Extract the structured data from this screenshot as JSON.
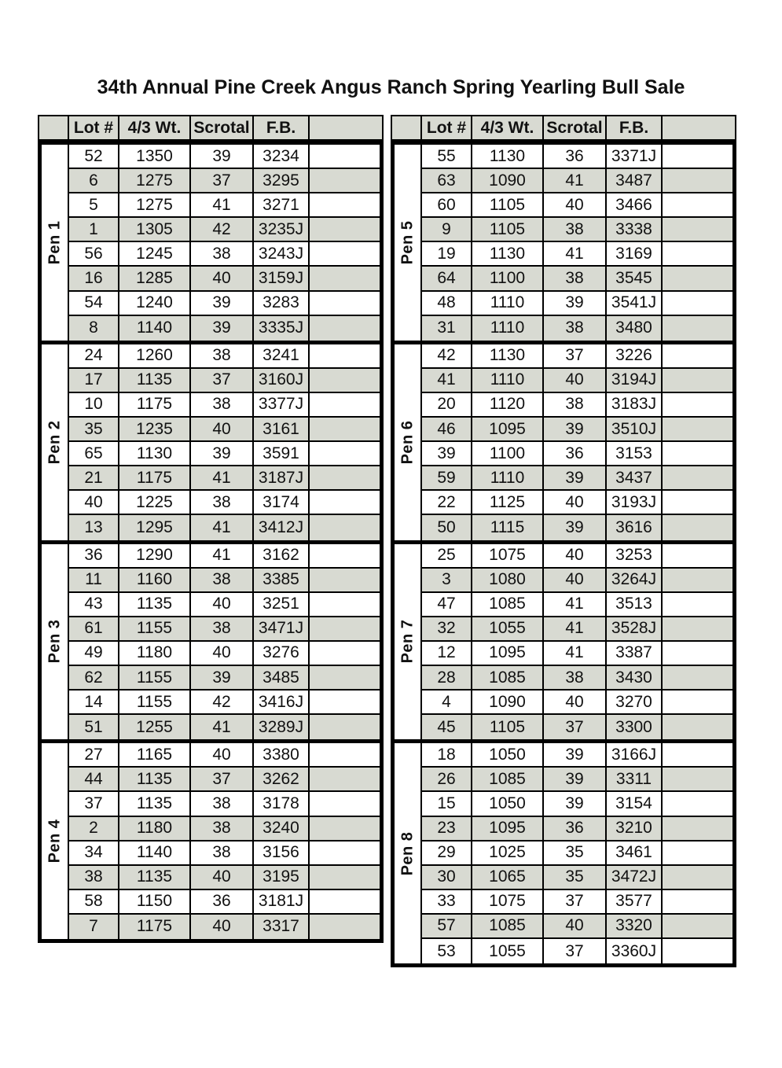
{
  "title": "34th Annual Pine Creek Angus Ranch Spring Yearling Bull Sale",
  "columns": [
    "",
    "Lot #",
    "4/3 Wt.",
    "Scrotal",
    "F.B.",
    ""
  ],
  "colors": {
    "row_alt": "#d8dad2",
    "header_bg": "#d8dad2",
    "border": "#000000",
    "page_bg": "#ffffff"
  },
  "tables": [
    {
      "side": "left",
      "pens": [
        {
          "label": "Pen 1",
          "rows": [
            [
              "52",
              "1350",
              "39",
              "3234"
            ],
            [
              "6",
              "1275",
              "37",
              "3295"
            ],
            [
              "5",
              "1275",
              "41",
              "3271"
            ],
            [
              "1",
              "1305",
              "42",
              "3235J"
            ],
            [
              "56",
              "1245",
              "38",
              "3243J"
            ],
            [
              "16",
              "1285",
              "40",
              "3159J"
            ],
            [
              "54",
              "1240",
              "39",
              "3283"
            ],
            [
              "8",
              "1140",
              "39",
              "3335J"
            ]
          ]
        },
        {
          "label": "Pen 2",
          "rows": [
            [
              "24",
              "1260",
              "38",
              "3241"
            ],
            [
              "17",
              "1135",
              "37",
              "3160J"
            ],
            [
              "10",
              "1175",
              "38",
              "3377J"
            ],
            [
              "35",
              "1235",
              "40",
              "3161"
            ],
            [
              "65",
              "1130",
              "39",
              "3591"
            ],
            [
              "21",
              "1175",
              "41",
              "3187J"
            ],
            [
              "40",
              "1225",
              "38",
              "3174"
            ],
            [
              "13",
              "1295",
              "41",
              "3412J"
            ]
          ]
        },
        {
          "label": "Pen 3",
          "rows": [
            [
              "36",
              "1290",
              "41",
              "3162"
            ],
            [
              "11",
              "1160",
              "38",
              "3385"
            ],
            [
              "43",
              "1135",
              "40",
              "3251"
            ],
            [
              "61",
              "1155",
              "38",
              "3471J"
            ],
            [
              "49",
              "1180",
              "40",
              "3276"
            ],
            [
              "62",
              "1155",
              "39",
              "3485"
            ],
            [
              "14",
              "1155",
              "42",
              "3416J"
            ],
            [
              "51",
              "1255",
              "41",
              "3289J"
            ]
          ]
        },
        {
          "label": "Pen 4",
          "rows": [
            [
              "27",
              "1165",
              "40",
              "3380"
            ],
            [
              "44",
              "1135",
              "37",
              "3262"
            ],
            [
              "37",
              "1135",
              "38",
              "3178"
            ],
            [
              "2",
              "1180",
              "38",
              "3240"
            ],
            [
              "34",
              "1140",
              "38",
              "3156"
            ],
            [
              "38",
              "1135",
              "40",
              "3195"
            ],
            [
              "58",
              "1150",
              "36",
              "3181J"
            ],
            [
              "7",
              "1175",
              "40",
              "3317"
            ]
          ]
        }
      ]
    },
    {
      "side": "right",
      "pens": [
        {
          "label": "Pen 5",
          "rows": [
            [
              "55",
              "1130",
              "36",
              "3371J"
            ],
            [
              "63",
              "1090",
              "41",
              "3487"
            ],
            [
              "60",
              "1105",
              "40",
              "3466"
            ],
            [
              "9",
              "1105",
              "38",
              "3338"
            ],
            [
              "19",
              "1130",
              "41",
              "3169"
            ],
            [
              "64",
              "1100",
              "38",
              "3545"
            ],
            [
              "48",
              "1110",
              "39",
              "3541J"
            ],
            [
              "31",
              "1110",
              "38",
              "3480"
            ]
          ]
        },
        {
          "label": "Pen 6",
          "rows": [
            [
              "42",
              "1130",
              "37",
              "3226"
            ],
            [
              "41",
              "1110",
              "40",
              "3194J"
            ],
            [
              "20",
              "1120",
              "38",
              "3183J"
            ],
            [
              "46",
              "1095",
              "39",
              "3510J"
            ],
            [
              "39",
              "1100",
              "36",
              "3153"
            ],
            [
              "59",
              "1110",
              "39",
              "3437"
            ],
            [
              "22",
              "1125",
              "40",
              "3193J"
            ],
            [
              "50",
              "1115",
              "39",
              "3616"
            ]
          ]
        },
        {
          "label": "Pen 7",
          "rows": [
            [
              "25",
              "1075",
              "40",
              "3253"
            ],
            [
              "3",
              "1080",
              "40",
              "3264J"
            ],
            [
              "47",
              "1085",
              "41",
              "3513"
            ],
            [
              "32",
              "1055",
              "41",
              "3528J"
            ],
            [
              "12",
              "1095",
              "41",
              "3387"
            ],
            [
              "28",
              "1085",
              "38",
              "3430"
            ],
            [
              "4",
              "1090",
              "40",
              "3270"
            ],
            [
              "45",
              "1105",
              "37",
              "3300"
            ]
          ]
        },
        {
          "label": "Pen 8",
          "rows": [
            [
              "18",
              "1050",
              "39",
              "3166J"
            ],
            [
              "26",
              "1085",
              "39",
              "3311"
            ],
            [
              "15",
              "1050",
              "39",
              "3154"
            ],
            [
              "23",
              "1095",
              "36",
              "3210"
            ],
            [
              "29",
              "1025",
              "35",
              "3461"
            ],
            [
              "30",
              "1065",
              "35",
              "3472J"
            ],
            [
              "33",
              "1075",
              "37",
              "3577"
            ],
            [
              "57",
              "1085",
              "40",
              "3320"
            ],
            [
              "53",
              "1055",
              "37",
              "3360J"
            ]
          ]
        }
      ]
    }
  ]
}
